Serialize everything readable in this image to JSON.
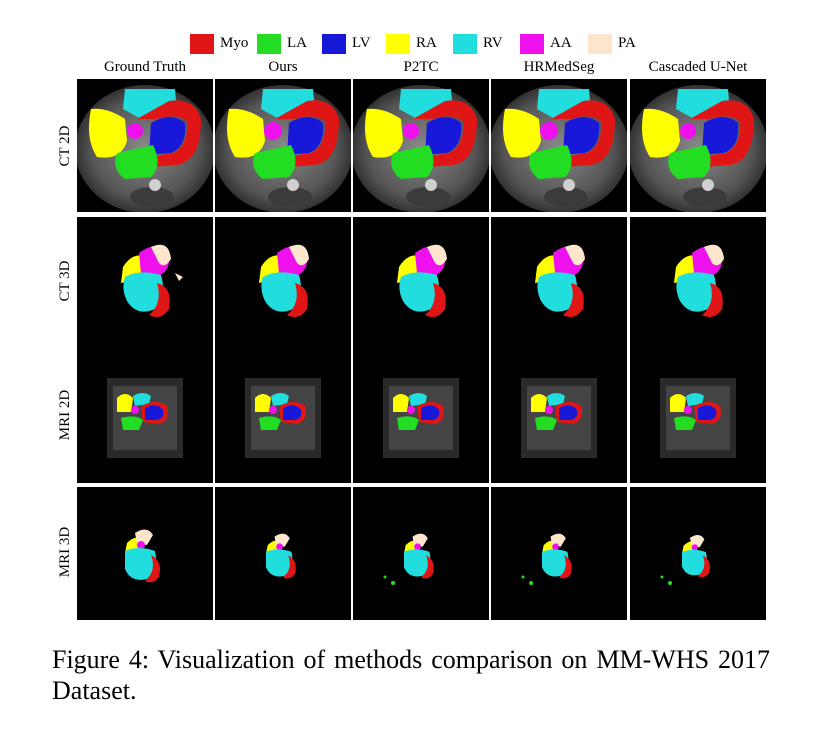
{
  "legend": [
    {
      "label": "Myo",
      "color": "#e01515"
    },
    {
      "label": "LA",
      "color": "#22dd22"
    },
    {
      "label": "LV",
      "color": "#1818d8"
    },
    {
      "label": "RA",
      "color": "#ffff00"
    },
    {
      "label": "RV",
      "color": "#22dddd"
    },
    {
      "label": "AA",
      "color": "#ee11ee"
    },
    {
      "label": "PA",
      "color": "#fde6cc"
    }
  ],
  "columns": [
    "Ground Truth",
    "Ours",
    "P2TC",
    "HRMedSeg",
    "Cascaded U-Net"
  ],
  "rows": [
    "CT 2D",
    "CT 3D",
    "MRI 2D",
    "MRI 3D"
  ],
  "caption": "Figure 4: Visualization of methods comparison on MM-WHS 2017 Dataset."
}
